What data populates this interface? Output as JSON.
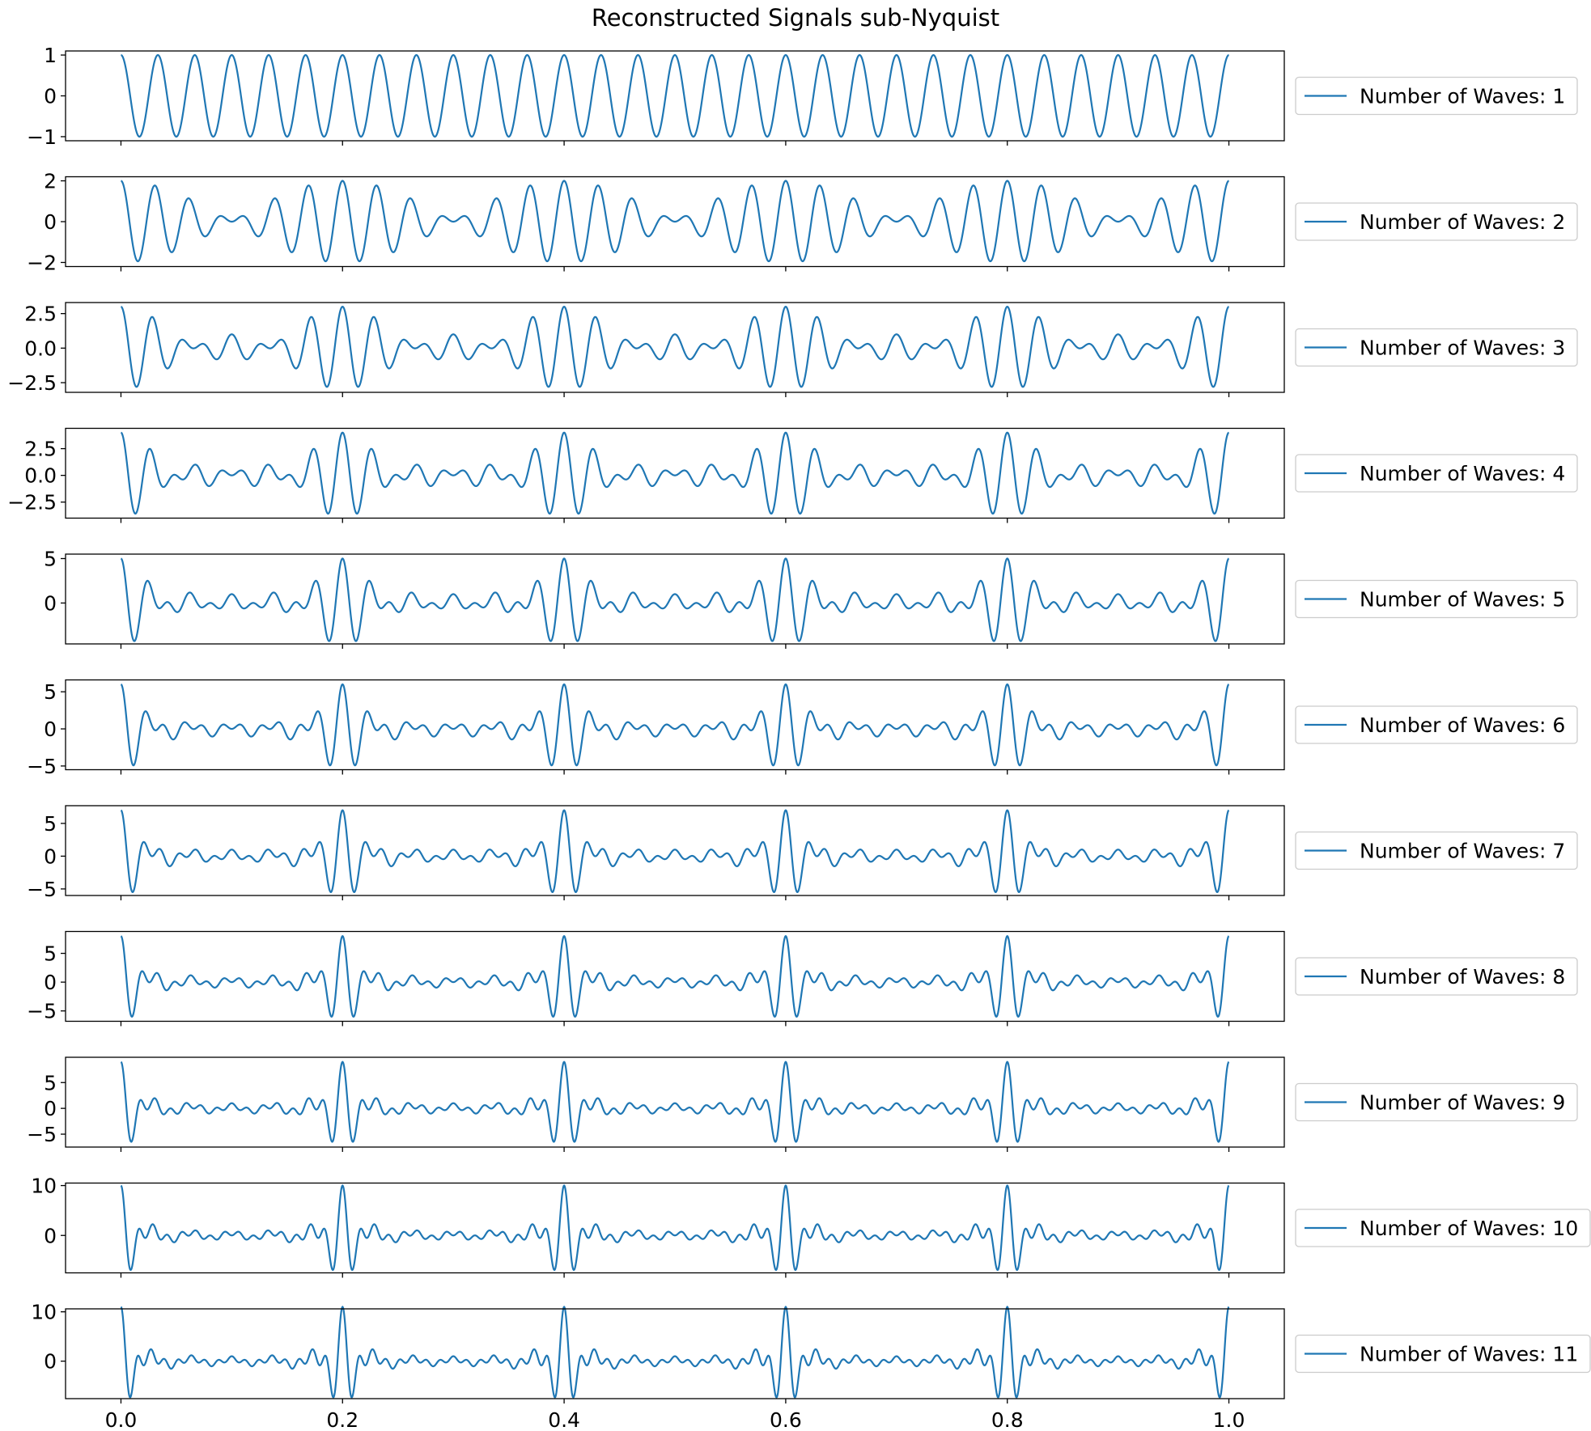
{
  "chart_data": {
    "type": "line",
    "title": "Reconstructed Signals sub-Nyquist",
    "signal": {
      "description_formula": "sum_{k=1..N} cos(2*pi*(30 + 5*(k-1))*t)",
      "base_frequency": 30,
      "frequency_step": 5,
      "t_range": [
        0.0,
        1.0
      ]
    },
    "shared_x_ticks": [
      {
        "value": 0.0,
        "label": "0.0"
      },
      {
        "value": 0.2,
        "label": "0.2"
      },
      {
        "value": 0.4,
        "label": "0.4"
      },
      {
        "value": 0.6,
        "label": "0.6"
      },
      {
        "value": 0.8,
        "label": "0.8"
      },
      {
        "value": 1.0,
        "label": "1.0"
      }
    ],
    "xlim": [
      -0.05,
      1.05
    ],
    "line_color": "#1f77b4",
    "subplots": [
      {
        "n_waves": 1,
        "legend": "Number of Waves: 1",
        "ylim": [
          -1.1,
          1.1
        ],
        "yticks": [
          {
            "value": 1,
            "label": "1"
          },
          {
            "value": 0,
            "label": "0"
          },
          {
            "value": -1,
            "label": "−1"
          }
        ]
      },
      {
        "n_waves": 2,
        "legend": "Number of Waves: 2",
        "ylim": [
          -2.2,
          2.2
        ],
        "yticks": [
          {
            "value": 2,
            "label": "2"
          },
          {
            "value": 0,
            "label": "0"
          },
          {
            "value": -2,
            "label": "−2"
          }
        ]
      },
      {
        "n_waves": 3,
        "legend": "Number of Waves: 3",
        "ylim": [
          -3.2,
          3.3
        ],
        "yticks": [
          {
            "value": 2.5,
            "label": "2.5"
          },
          {
            "value": 0,
            "label": "0.0"
          },
          {
            "value": -2.5,
            "label": "−2.5"
          }
        ]
      },
      {
        "n_waves": 4,
        "legend": "Number of Waves: 4",
        "ylim": [
          -4.0,
          4.4
        ],
        "yticks": [
          {
            "value": 2.5,
            "label": "2.5"
          },
          {
            "value": 0,
            "label": "0.0"
          },
          {
            "value": -2.5,
            "label": "−2.5"
          }
        ]
      },
      {
        "n_waves": 5,
        "legend": "Number of Waves: 5",
        "ylim": [
          -4.6,
          5.5
        ],
        "yticks": [
          {
            "value": 5,
            "label": "5"
          },
          {
            "value": 0,
            "label": "0"
          }
        ]
      },
      {
        "n_waves": 6,
        "legend": "Number of Waves: 6",
        "ylim": [
          -5.5,
          6.6
        ],
        "yticks": [
          {
            "value": 5,
            "label": "5"
          },
          {
            "value": 0,
            "label": "0"
          },
          {
            "value": -5,
            "label": "−5"
          }
        ]
      },
      {
        "n_waves": 7,
        "legend": "Number of Waves: 7",
        "ylim": [
          -6.0,
          7.7
        ],
        "yticks": [
          {
            "value": 5,
            "label": "5"
          },
          {
            "value": 0,
            "label": "0"
          },
          {
            "value": -5,
            "label": "−5"
          }
        ]
      },
      {
        "n_waves": 8,
        "legend": "Number of Waves: 8",
        "ylim": [
          -6.8,
          8.8
        ],
        "yticks": [
          {
            "value": 5,
            "label": "5"
          },
          {
            "value": 0,
            "label": "0"
          },
          {
            "value": -5,
            "label": "−5"
          }
        ]
      },
      {
        "n_waves": 9,
        "legend": "Number of Waves: 9",
        "ylim": [
          -7.5,
          9.9
        ],
        "yticks": [
          {
            "value": 5,
            "label": "5"
          },
          {
            "value": 0,
            "label": "0"
          },
          {
            "value": -5,
            "label": "−5"
          }
        ]
      },
      {
        "n_waves": 10,
        "legend": "Number of Waves: 10",
        "ylim": [
          -7.5,
          10.5
        ],
        "yticks": [
          {
            "value": 10,
            "label": "10"
          },
          {
            "value": 0,
            "label": "0"
          }
        ]
      },
      {
        "n_waves": 11,
        "legend": "Number of Waves: 11",
        "ylim": [
          -7.6,
          10.6
        ],
        "yticks": [
          {
            "value": 10,
            "label": "10"
          },
          {
            "value": 0,
            "label": "0"
          }
        ]
      }
    ]
  }
}
